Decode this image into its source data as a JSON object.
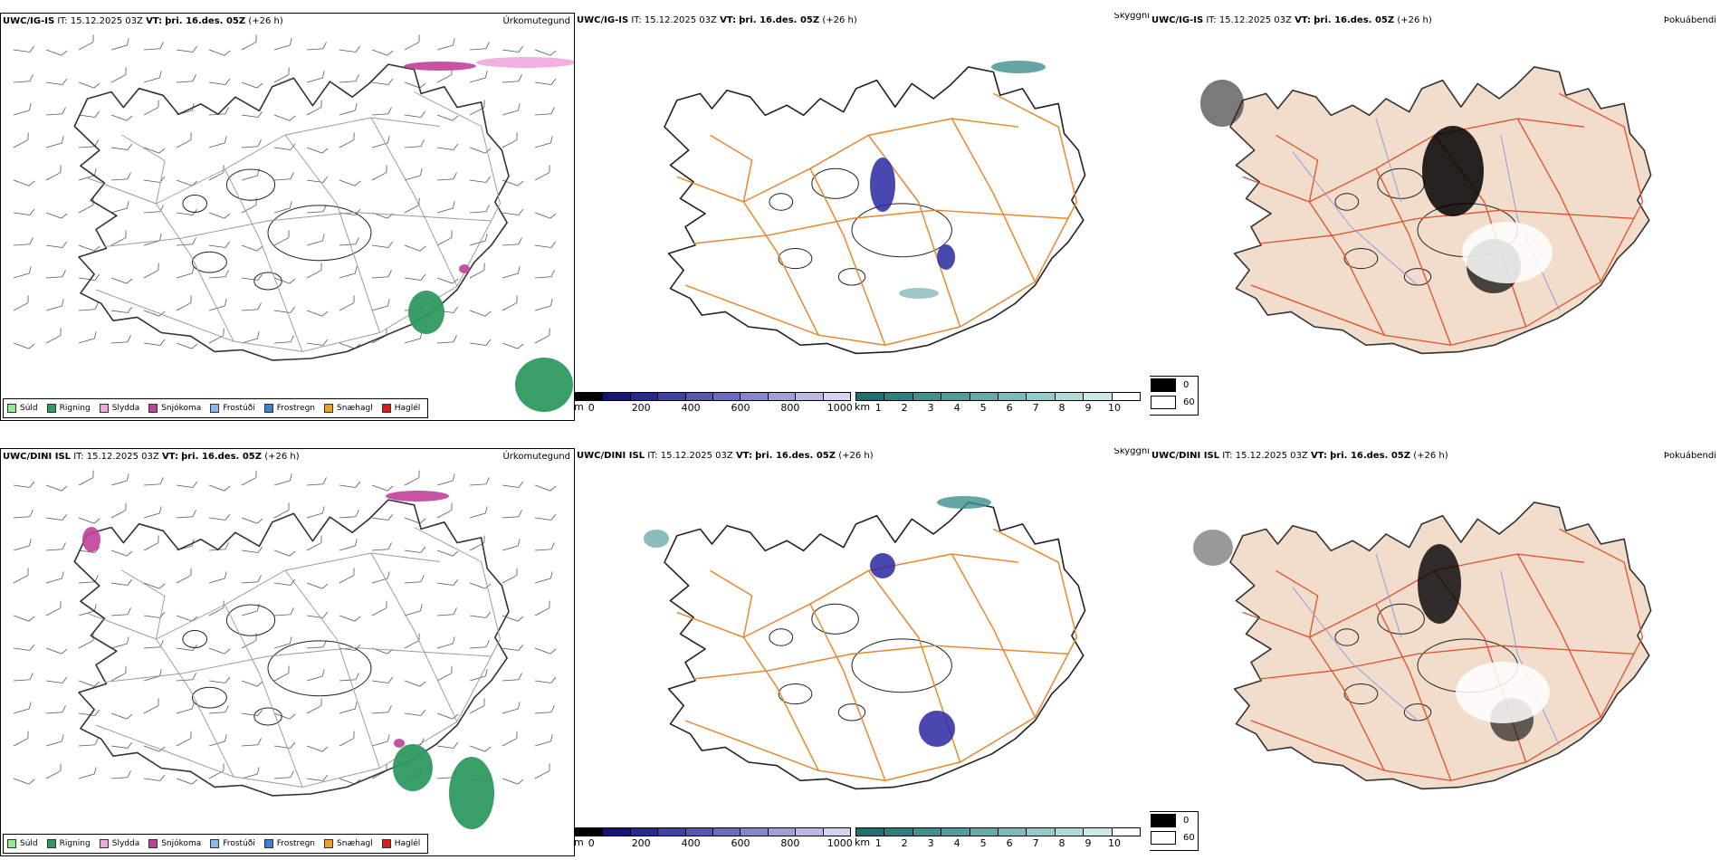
{
  "rows": [
    {
      "model": "UWC/IG-IS",
      "it_label": "IT:",
      "it_value": "15.12.2025 03Z",
      "vt_label": "VT:",
      "vt_value": "þri. 16.des. 05Z",
      "lead": "(+26 h)"
    },
    {
      "model": "UWC/DINI ISL",
      "it_label": "IT:",
      "it_value": "15.12.2025 03Z",
      "vt_label": "VT:",
      "vt_value": "þri. 16.des. 05Z",
      "lead": "(+26 h)"
    }
  ],
  "panels": {
    "precip_type": "Úrkomutegund",
    "visibility": "Skyggni",
    "fog": "Þokuábendi"
  },
  "precip_legend": [
    {
      "label": "Súld",
      "color": "#90ee90"
    },
    {
      "label": "Rigning",
      "color": "#2e9960"
    },
    {
      "label": "Slydda",
      "color": "#f0a8dc"
    },
    {
      "label": "Snjókoma",
      "color": "#c0409a"
    },
    {
      "label": "Frostúði",
      "color": "#8bb8f0"
    },
    {
      "label": "Frostregn",
      "color": "#3f7fd6"
    },
    {
      "label": "Snæhagl",
      "color": "#f0a020"
    },
    {
      "label": "Haglél",
      "color": "#e01818"
    }
  ],
  "ceiling_bar": {
    "unit": "m",
    "ticks": [
      "0",
      "200",
      "400",
      "600",
      "800",
      "1000"
    ],
    "colors": [
      "#000000",
      "#14147a",
      "#282896",
      "#4040aa",
      "#5656b4",
      "#6c6cc0",
      "#8686cc",
      "#a0a0d8",
      "#babae4",
      "#d4d4f0"
    ]
  },
  "visibility_bar": {
    "unit": "km",
    "ticks": [
      "1",
      "2",
      "3",
      "4",
      "5",
      "6",
      "7",
      "8",
      "9",
      "10"
    ],
    "colors": [
      "#1f6f6f",
      "#2f7f7f",
      "#3f8f8f",
      "#539c9c",
      "#68aaaa",
      "#7ebaba",
      "#96caca",
      "#b0d9d9",
      "#cce8e8",
      "#ffffff"
    ]
  },
  "fog_legend": {
    "top_label": "0",
    "bottom_label": "60",
    "top_color": "#000000",
    "bottom_color": "#ffffff"
  },
  "palette": {
    "roads": "#e8862c",
    "fog_land": "#f2dccb",
    "fog_roads": "#e0502a",
    "fog_rivers": "#8898e8",
    "rain": "#2e9960",
    "snow": "#c0409a",
    "sleet": "#f0a8dc",
    "cloud_low": "#2828a0",
    "vis_low": "#3f8f8f"
  }
}
